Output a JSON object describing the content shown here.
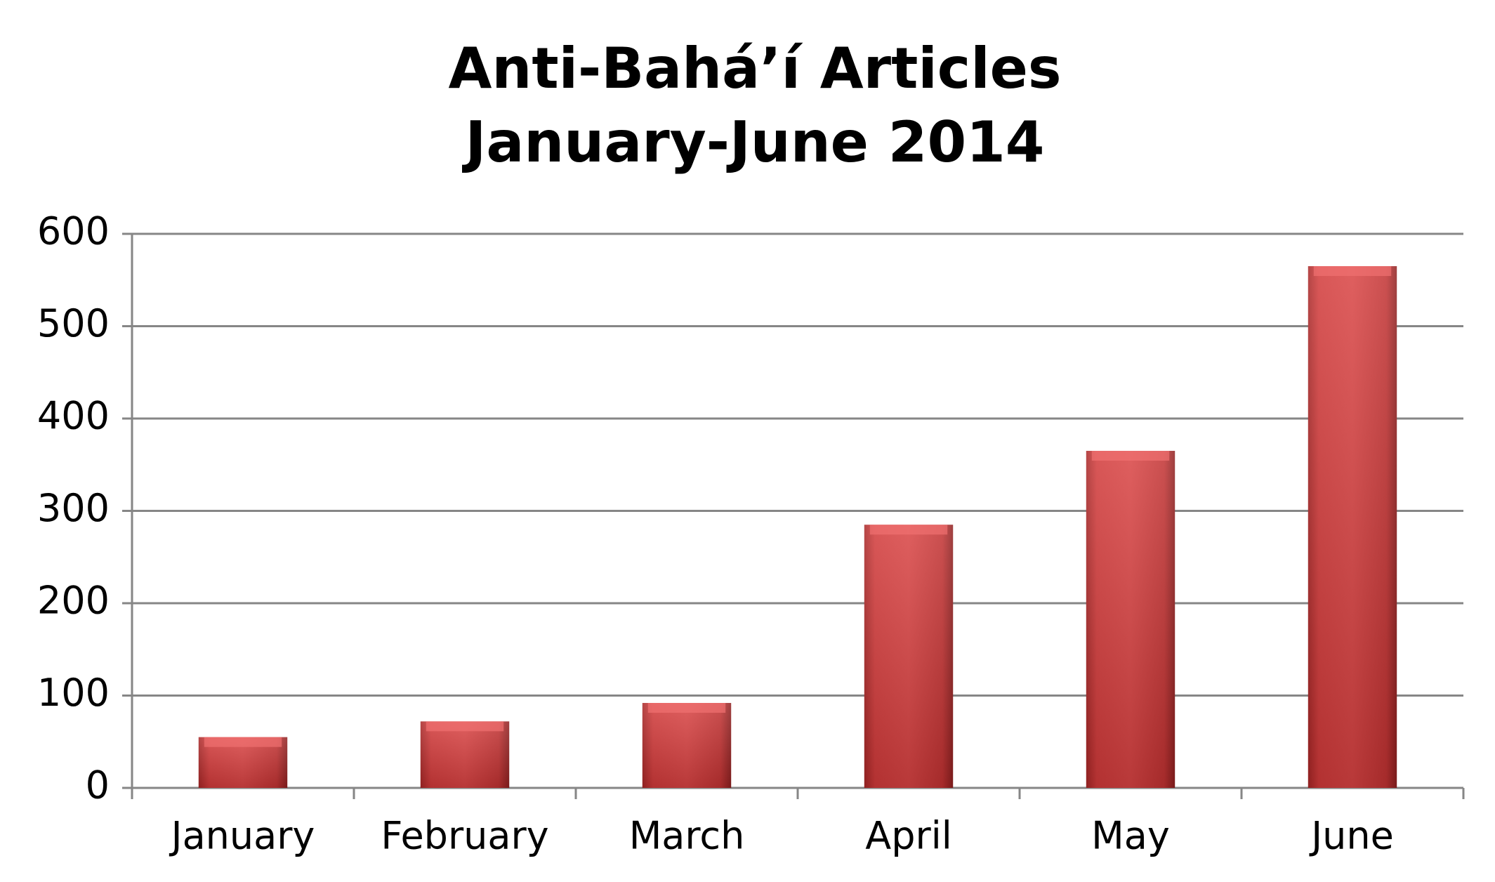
{
  "chart_data": {
    "type": "bar",
    "title": "Anti-Bahá’í Articles",
    "subtitle": "January-June 2014",
    "categories": [
      "January",
      "February",
      "March",
      "April",
      "May",
      "June"
    ],
    "values": [
      55,
      72,
      92,
      285,
      365,
      565
    ],
    "color": "#d63a3a",
    "ylim": [
      0,
      600
    ],
    "yticks": [
      0,
      100,
      200,
      300,
      400,
      500,
      600
    ],
    "grid": true
  }
}
